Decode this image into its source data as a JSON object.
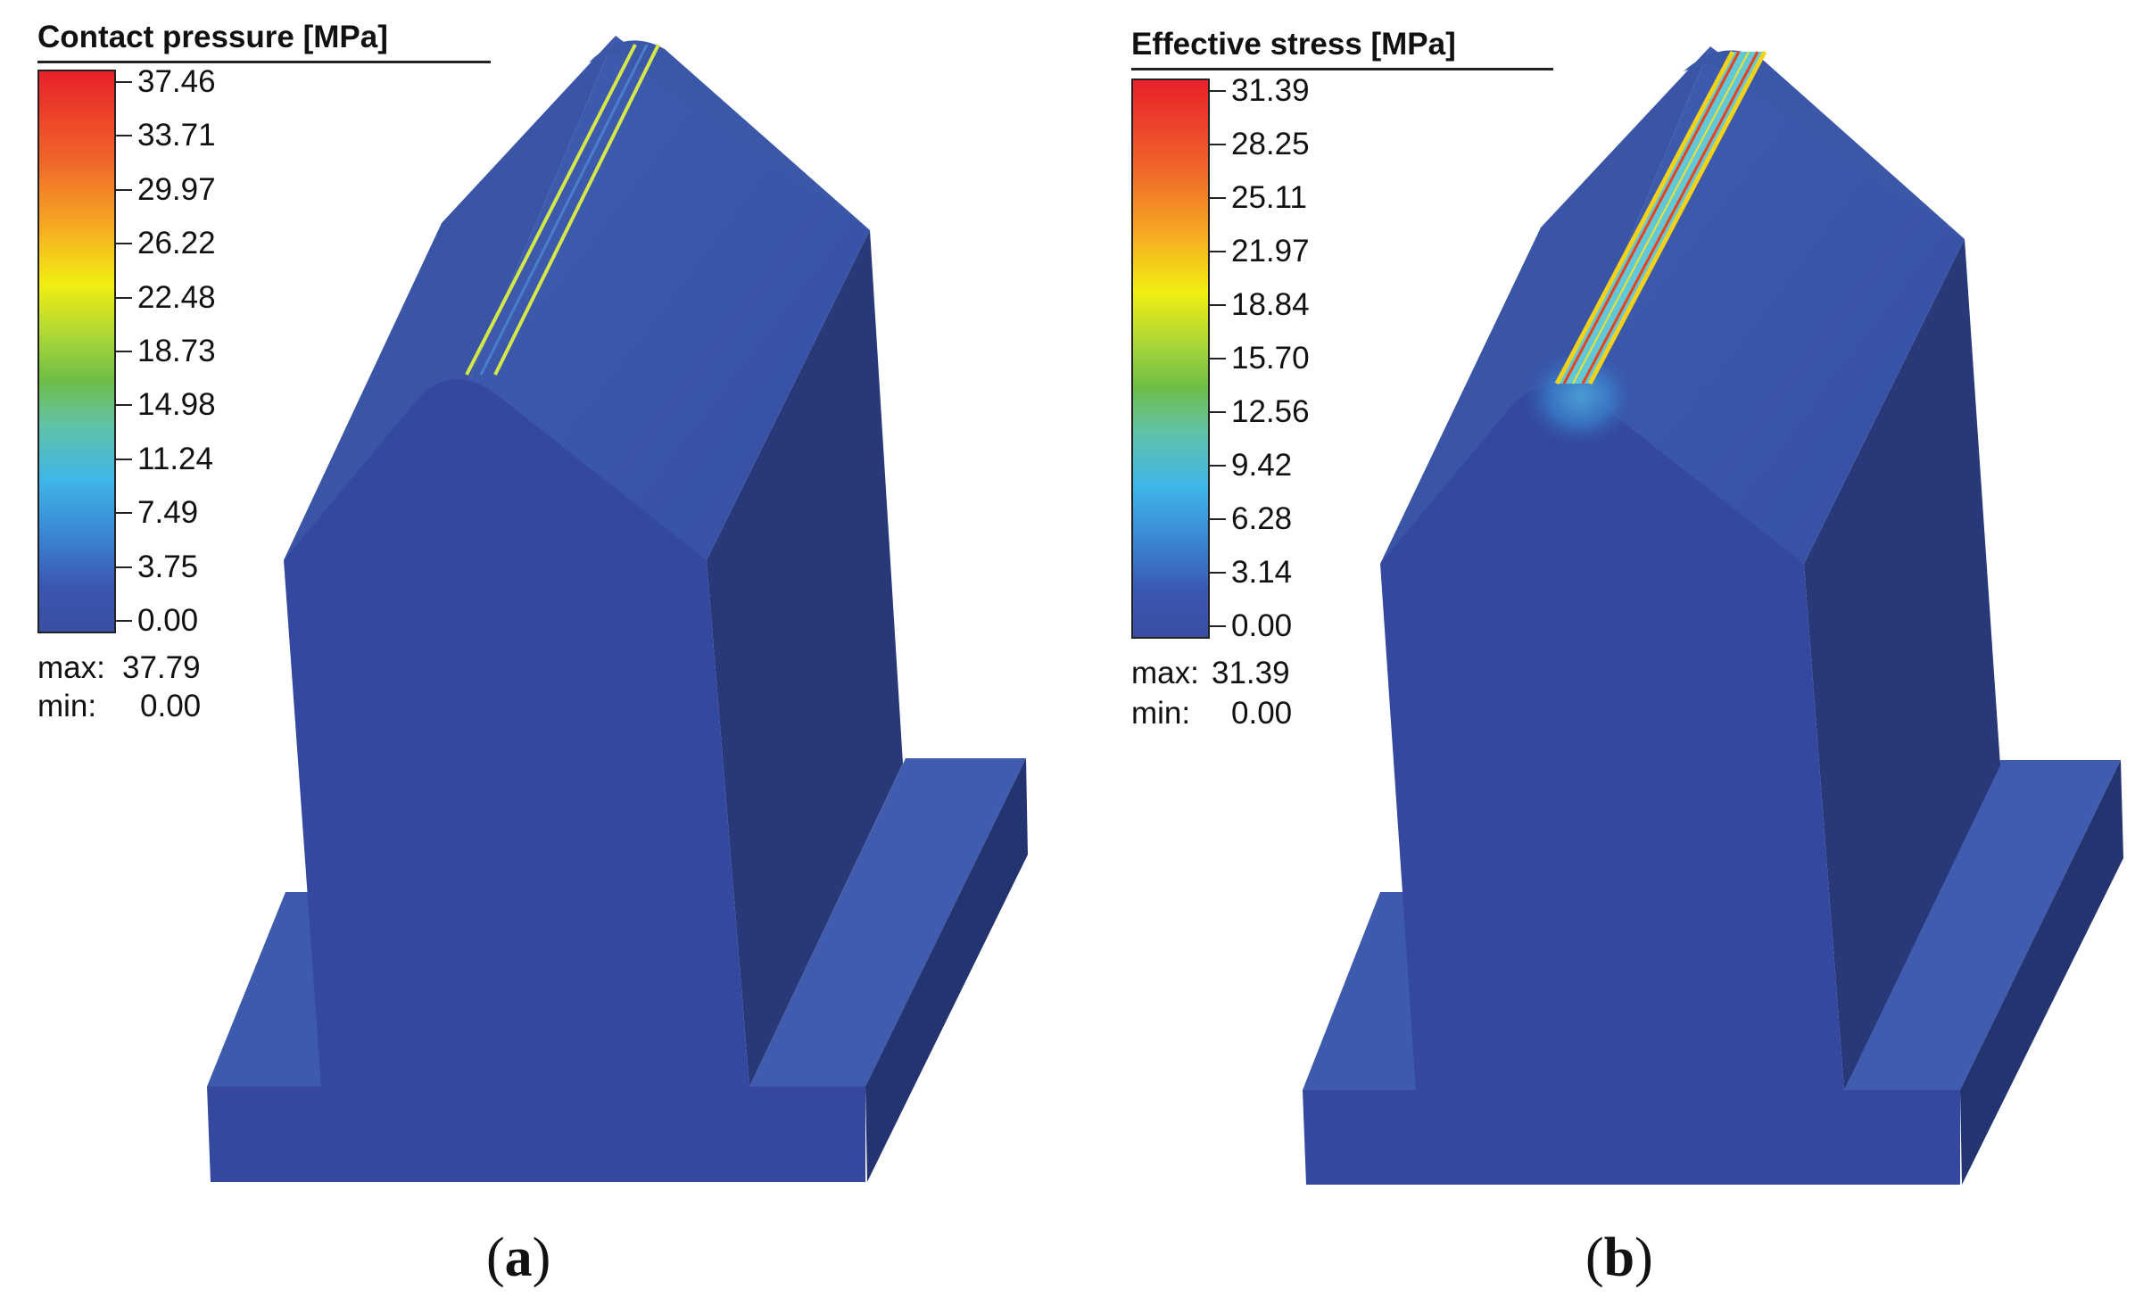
{
  "panels": [
    {
      "legend_title": "Contact pressure [MPa]",
      "ticks": [
        "37.46",
        "33.71",
        "29.97",
        "26.22",
        "22.48",
        "18.73",
        "14.98",
        "11.24",
        "7.49",
        "3.75",
        "0.00"
      ],
      "max_label": "max:",
      "max_value": "37.79",
      "min_label": "min:",
      "min_value": "0.00",
      "caption_open": "(",
      "caption_letter": "a",
      "caption_close": ")"
    },
    {
      "legend_title": "Effective stress [MPa]",
      "ticks": [
        "31.39",
        "28.25",
        "25.11",
        "21.97",
        "18.84",
        "15.70",
        "12.56",
        "9.42",
        "6.28",
        "3.14",
        "0.00"
      ],
      "max_label": "max:",
      "max_value": "31.39",
      "min_label": "min:",
      "min_value": "0.00",
      "caption_open": "(",
      "caption_letter": "b",
      "caption_close": ")"
    }
  ],
  "colors": {
    "front_face": "#33489e",
    "side_face": "#283878",
    "top_face": "#3a55a6",
    "base_top": "#3d5aac",
    "base_front": "#33489e",
    "base_side": "#243470",
    "contact_stripe": "#d4e84a",
    "stress_stripe_outer": "#f4d21a",
    "stress_stripe_inner": "#62c8d8",
    "stress_stripe_edge": "#e8421e"
  }
}
